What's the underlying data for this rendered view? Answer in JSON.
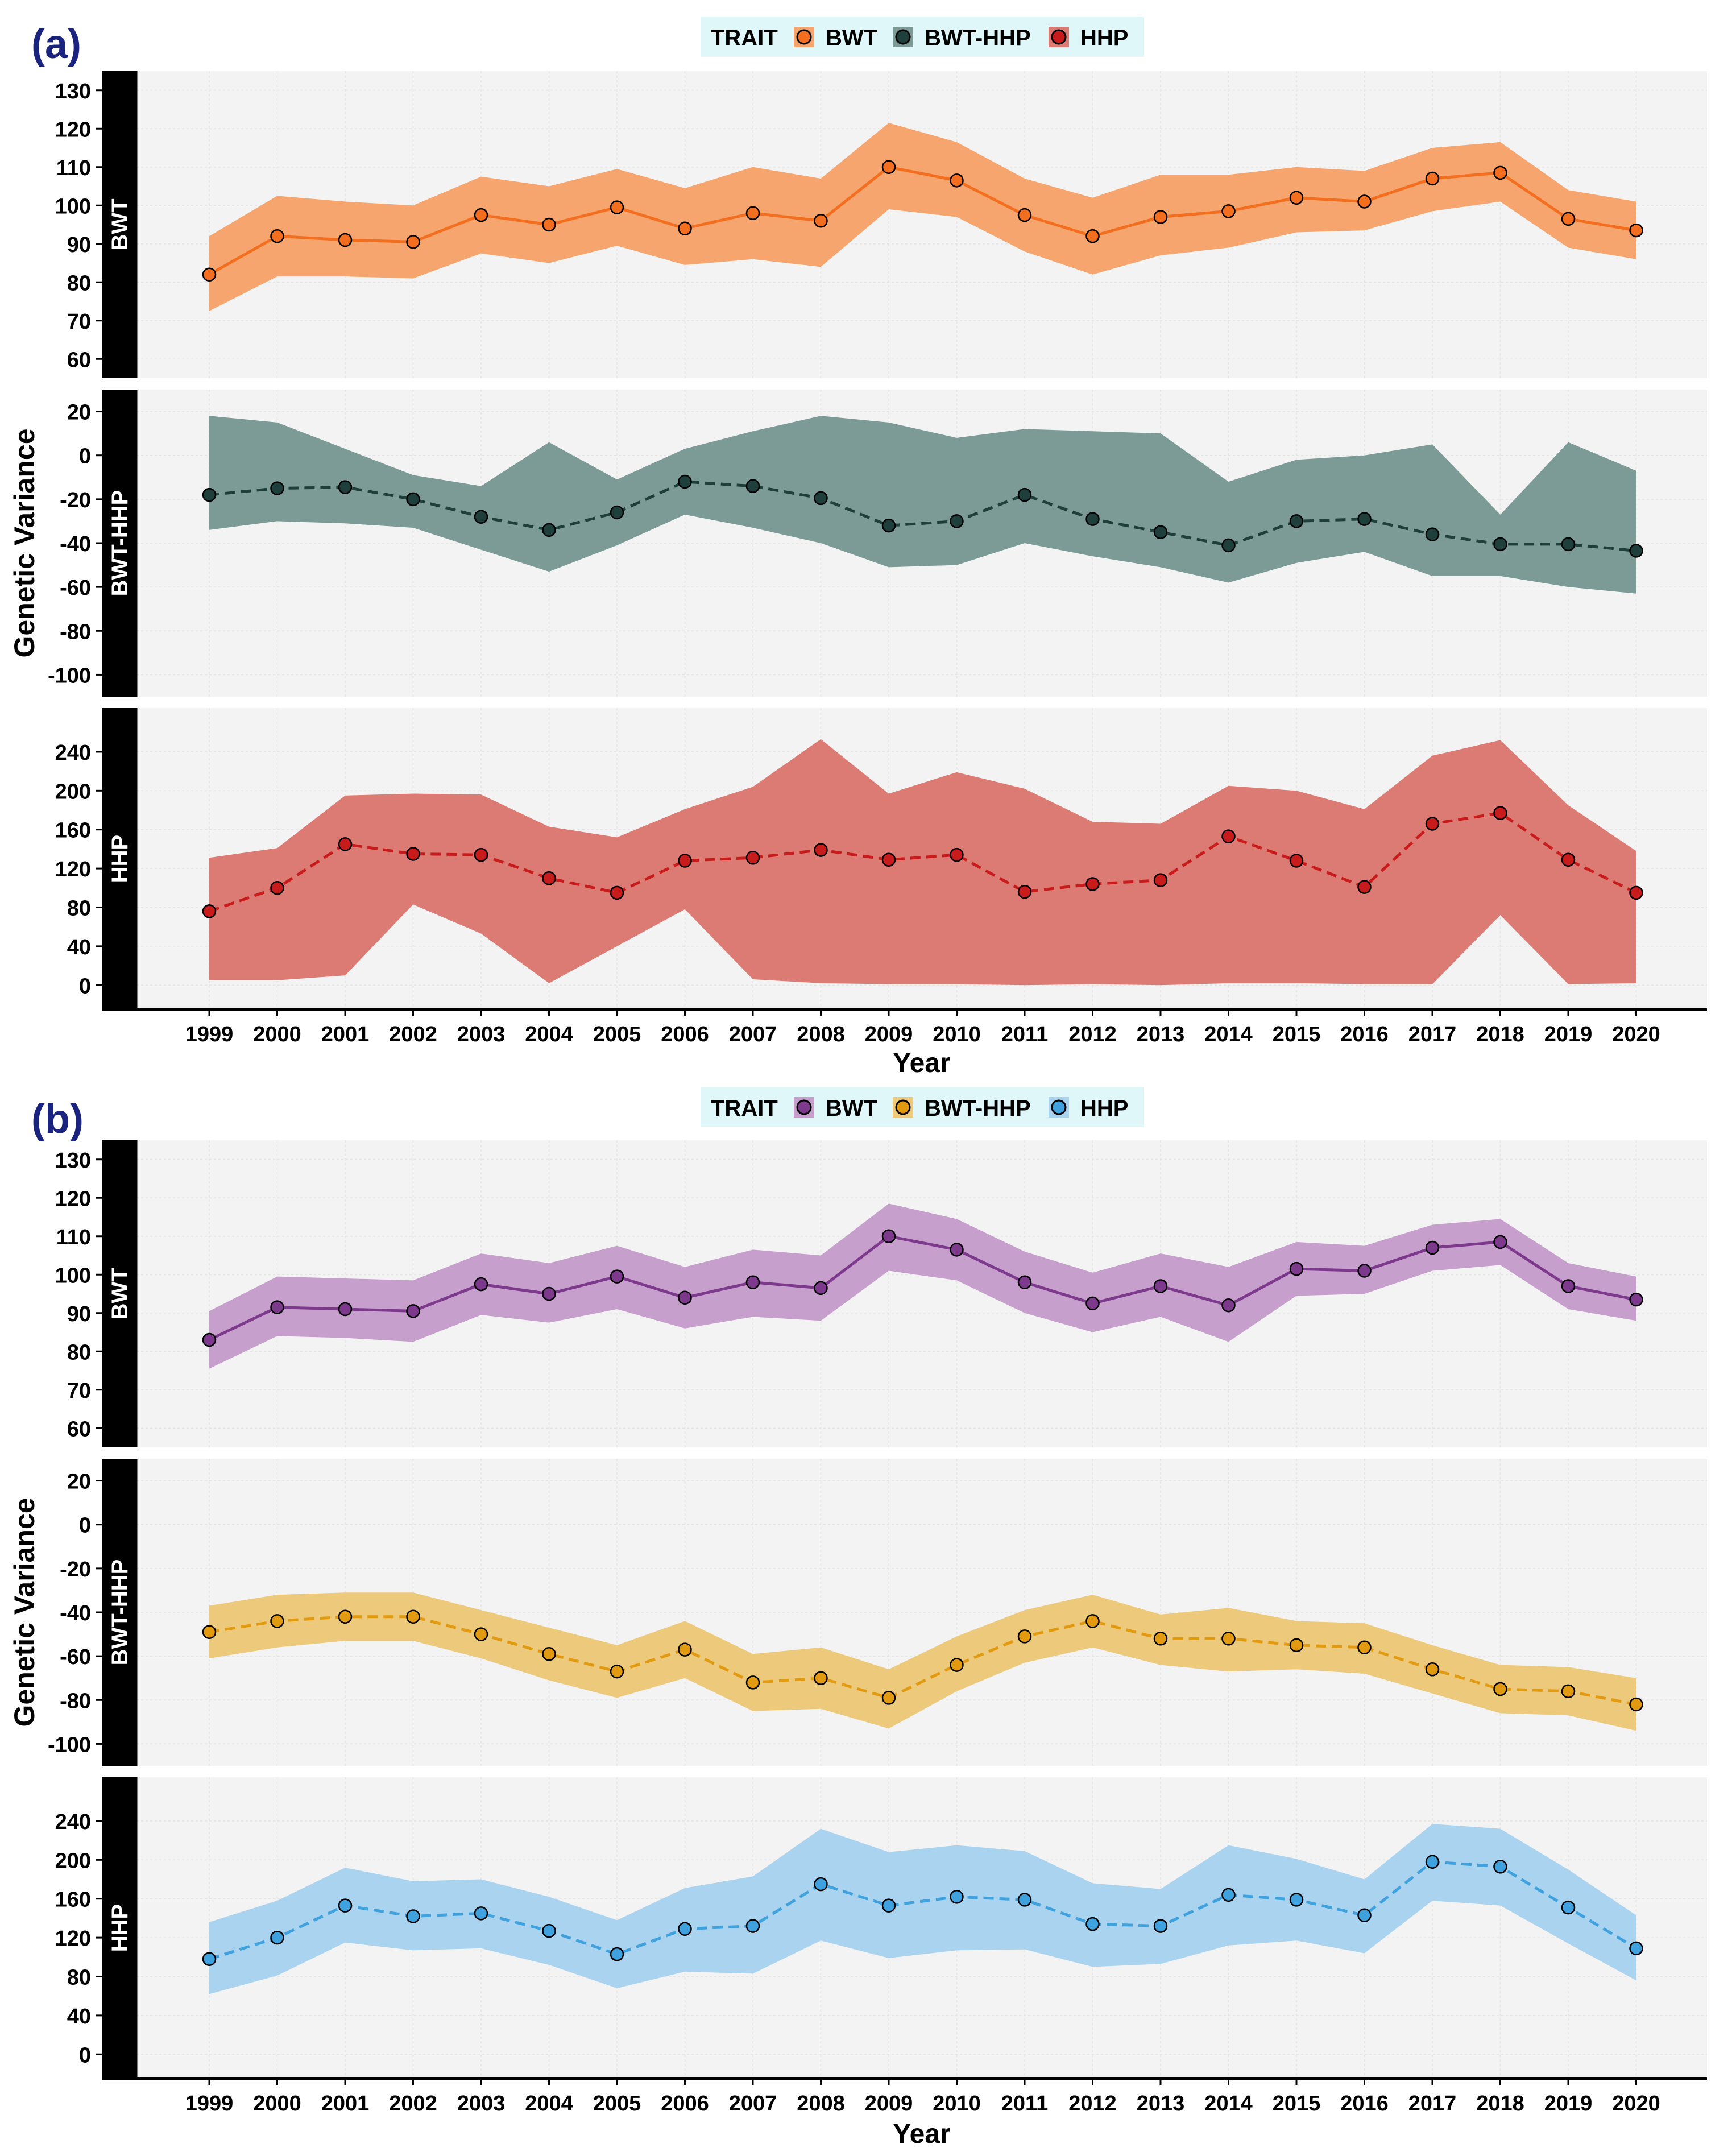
{
  "figure": {
    "ylabel": "Genetic Variance",
    "xlabel": "Year",
    "legend_title": "TRAIT",
    "years": [
      "1999",
      "2000",
      "2001",
      "2002",
      "2003",
      "2004",
      "2005",
      "2006",
      "2007",
      "2008",
      "2009",
      "2010",
      "2011",
      "2012",
      "2013",
      "2014",
      "2015",
      "2016",
      "2017",
      "2018",
      "2019",
      "2020"
    ]
  },
  "chart_data": [
    {
      "panel_label": "(a)",
      "type": "line",
      "legend": [
        {
          "name": "BWT",
          "color": "#f36f1f",
          "fill": "#f5a56d"
        },
        {
          "name": "BWT-HHP",
          "color": "#1e3f3b",
          "fill": "#7c9b97"
        },
        {
          "name": "HHP",
          "color": "#c81c1c",
          "fill": "#dc7b73"
        }
      ],
      "facets": [
        {
          "strip": "BWT",
          "dash": "solid",
          "color": "#f36f1f",
          "fill": "#f5a56d",
          "ylim": [
            55,
            135
          ],
          "yticks": [
            "60",
            "70",
            "80",
            "90",
            "100",
            "110",
            "120",
            "130"
          ],
          "values": [
            82,
            92,
            91,
            90.5,
            97.5,
            95,
            99.5,
            94,
            98,
            96,
            110,
            106.5,
            97.5,
            92,
            97,
            98.5,
            102,
            101,
            107,
            108.5,
            96.5,
            93.5
          ],
          "lower": [
            72.5,
            81.5,
            81.5,
            81,
            87.5,
            85,
            89.5,
            84.5,
            86,
            84,
            99,
            97,
            88,
            82,
            87,
            89,
            93,
            93.5,
            98.5,
            101,
            89,
            86
          ],
          "upper": [
            92,
            102.5,
            101,
            100,
            107.5,
            105,
            109.5,
            104.5,
            110,
            107,
            121.5,
            116.5,
            107,
            102,
            108,
            108,
            110,
            109,
            115,
            116.5,
            104,
            101
          ]
        },
        {
          "strip": "BWT-HHP",
          "dash": "dashed",
          "color": "#1e3f3b",
          "fill": "#7c9b97",
          "ylim": [
            -110,
            30
          ],
          "yticks": [
            "-100",
            "-80",
            "-60",
            "-40",
            "-20",
            "0",
            "20"
          ],
          "values": [
            -18,
            -15,
            -14.5,
            -20,
            -28,
            -34,
            -26,
            -12,
            -14,
            -19.5,
            -32,
            -30,
            -18,
            -29,
            -35,
            -41,
            -30,
            -29,
            -36,
            -40.5,
            -40.5,
            -43.5
          ],
          "lower": [
            -34,
            -30,
            -31,
            -33,
            -43,
            -53,
            -41,
            -27,
            -33,
            -40,
            -51,
            -50,
            -40,
            -46,
            -51,
            -58,
            -49,
            -44,
            -55,
            -55,
            -60,
            -63
          ],
          "upper": [
            18,
            15,
            3,
            -9,
            -14,
            6,
            -11,
            3,
            11,
            18,
            15,
            8,
            12,
            11,
            10,
            -12,
            -2,
            0,
            5,
            -27,
            6,
            -7
          ]
        },
        {
          "strip": "HHP",
          "dash": "dashed",
          "color": "#c81c1c",
          "fill": "#dc7b73",
          "ylim": [
            -25,
            285
          ],
          "yticks": [
            "0",
            "40",
            "80",
            "120",
            "160",
            "200",
            "240"
          ],
          "values": [
            76,
            100,
            145,
            135,
            134,
            110,
            95,
            128,
            131,
            139,
            129,
            134,
            96,
            104,
            108,
            153,
            128,
            101,
            166,
            177,
            129,
            95
          ],
          "lower": [
            5,
            5,
            10,
            83,
            53,
            2,
            40,
            78,
            6,
            2,
            1,
            1,
            0,
            1,
            0,
            2,
            2,
            1,
            1,
            72,
            1,
            2
          ],
          "upper": [
            131,
            141,
            195,
            197,
            196,
            163,
            152,
            181,
            204,
            253,
            197,
            219,
            202,
            168,
            166,
            205,
            200,
            181,
            236,
            252,
            185,
            138
          ]
        }
      ]
    },
    {
      "panel_label": "(b)",
      "type": "line",
      "legend": [
        {
          "name": "BWT",
          "color": "#7d3a8c",
          "fill": "#c69fcd"
        },
        {
          "name": "BWT-HHP",
          "color": "#e29a10",
          "fill": "#ecc97b"
        },
        {
          "name": "HHP",
          "color": "#3fa1dd",
          "fill": "#a9d3ee"
        }
      ],
      "facets": [
        {
          "strip": "BWT",
          "dash": "solid",
          "color": "#7d3a8c",
          "fill": "#c69fcd",
          "ylim": [
            55,
            135
          ],
          "yticks": [
            "60",
            "70",
            "80",
            "90",
            "100",
            "110",
            "120",
            "130"
          ],
          "values": [
            83,
            91.5,
            91,
            90.5,
            97.5,
            95,
            99.5,
            94,
            98,
            96.5,
            110,
            106.5,
            98,
            92.5,
            97,
            92,
            101.5,
            101,
            107,
            108.5,
            97,
            93.5
          ],
          "lower": [
            75.5,
            84,
            83.5,
            82.5,
            89.5,
            87.5,
            91,
            86,
            89,
            88,
            101,
            98.5,
            90,
            85,
            89,
            82.5,
            94.5,
            95,
            101,
            102.5,
            91,
            88
          ],
          "upper": [
            90.5,
            99.5,
            99,
            98.5,
            105.5,
            103,
            107.5,
            102,
            106.5,
            105,
            118.5,
            114.5,
            106,
            100.5,
            105.5,
            102,
            108.5,
            107.5,
            113,
            114.5,
            103,
            99.5
          ]
        },
        {
          "strip": "BWT-HHP",
          "dash": "dashed",
          "color": "#e29a10",
          "fill": "#ecc97b",
          "ylim": [
            -110,
            30
          ],
          "yticks": [
            "-100",
            "-80",
            "-60",
            "-40",
            "-20",
            "0",
            "20"
          ],
          "values": [
            -49,
            -44,
            -42,
            -42,
            -50,
            -59,
            -67,
            -57,
            -72,
            -70,
            -79,
            -64,
            -51,
            -44,
            -52,
            -52,
            -55,
            -56,
            -66,
            -75,
            -76,
            -82
          ],
          "lower": [
            -61,
            -56,
            -53,
            -53,
            -61,
            -71,
            -79,
            -70,
            -85,
            -84,
            -93,
            -76,
            -63,
            -56,
            -64,
            -67,
            -66,
            -68,
            -77,
            -86,
            -87,
            -94
          ],
          "upper": [
            -37,
            -32,
            -31,
            -31,
            -39,
            -47,
            -55,
            -44,
            -59,
            -56,
            -66,
            -51,
            -39,
            -32,
            -41,
            -38,
            -44,
            -45,
            -55,
            -64,
            -65,
            -70
          ]
        },
        {
          "strip": "HHP",
          "dash": "dashed",
          "color": "#3fa1dd",
          "fill": "#a9d3ee",
          "ylim": [
            -25,
            285
          ],
          "yticks": [
            "0",
            "40",
            "80",
            "120",
            "160",
            "200",
            "240"
          ],
          "values": [
            98,
            120,
            153,
            142,
            145,
            127,
            103,
            129,
            132,
            175,
            153,
            162,
            159,
            134,
            132,
            164,
            159,
            143,
            198,
            193,
            151,
            109
          ],
          "lower": [
            62,
            81,
            115,
            107,
            109,
            92,
            68,
            85,
            83,
            117,
            99,
            107,
            108,
            90,
            93,
            112,
            117,
            104,
            158,
            153,
            114,
            76
          ],
          "upper": [
            136,
            158,
            192,
            178,
            180,
            162,
            138,
            171,
            183,
            232,
            208,
            215,
            209,
            176,
            170,
            215,
            201,
            180,
            237,
            232,
            190,
            143
          ]
        }
      ]
    }
  ]
}
